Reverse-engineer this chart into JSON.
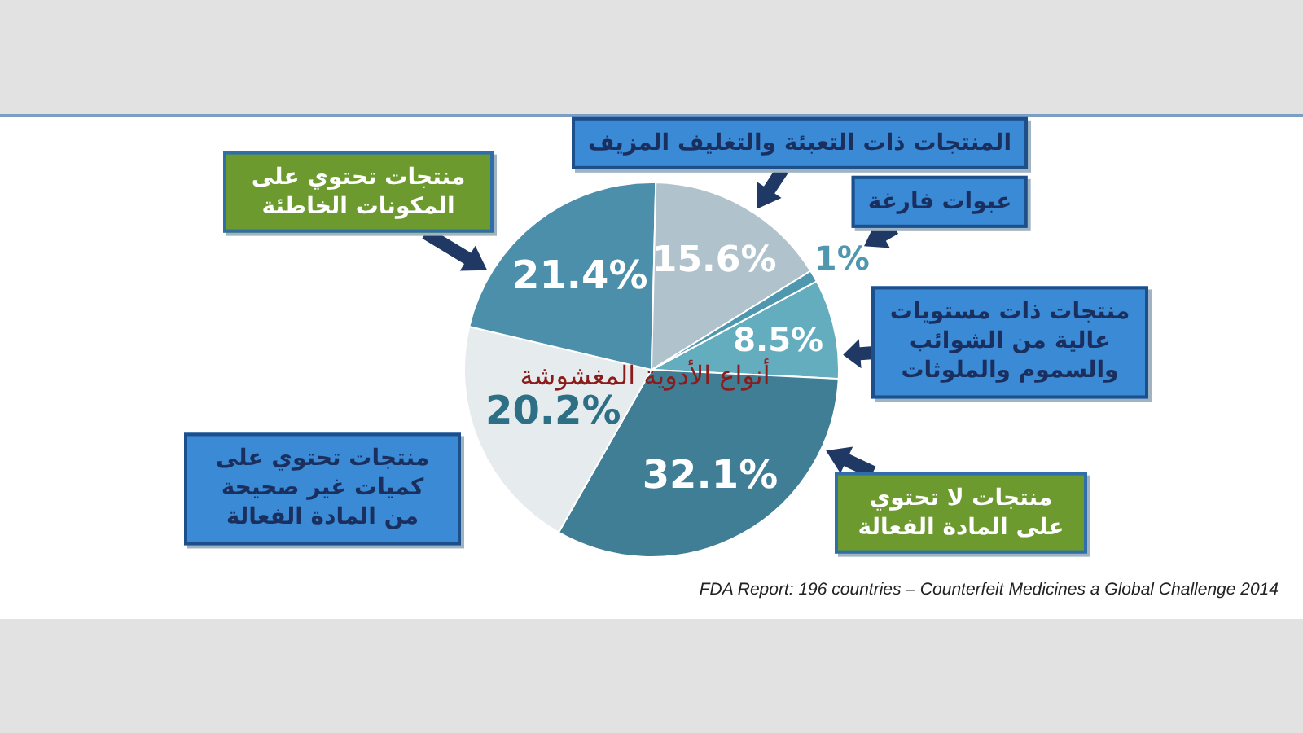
{
  "chart_data": {
    "type": "pie",
    "title": "أنواع الأدوية المغشوشة",
    "categories": [
      "منتجات ذات مستويات عالية من الشوائب والسموم والملوثات",
      "منتجات لا تحتوي على المادة الفعالة",
      "منتجات تحتوي على كميات غير صحيحة من المادة الفعالة",
      "منتجات تحتوي على المكونات الخاطئة",
      "المنتجات ذات التعبئة والتغليف المزيف",
      "عبوات فارغة"
    ],
    "values": [
      8.5,
      32.1,
      20.2,
      21.4,
      15.6,
      1
    ],
    "value_labels": [
      "8.5%",
      "32.1%",
      "20.2%",
      "21.4%",
      "15.6%",
      "1%"
    ],
    "colors": [
      "#63adbf",
      "#3f7e95",
      "#e6ebee",
      "#4b8fab",
      "#b0c2cb",
      "#4f97ae"
    ],
    "annotations": [
      "FDA Report: 196 countries – Counterfeit Medicines a Global Challenge 2014"
    ]
  }
}
